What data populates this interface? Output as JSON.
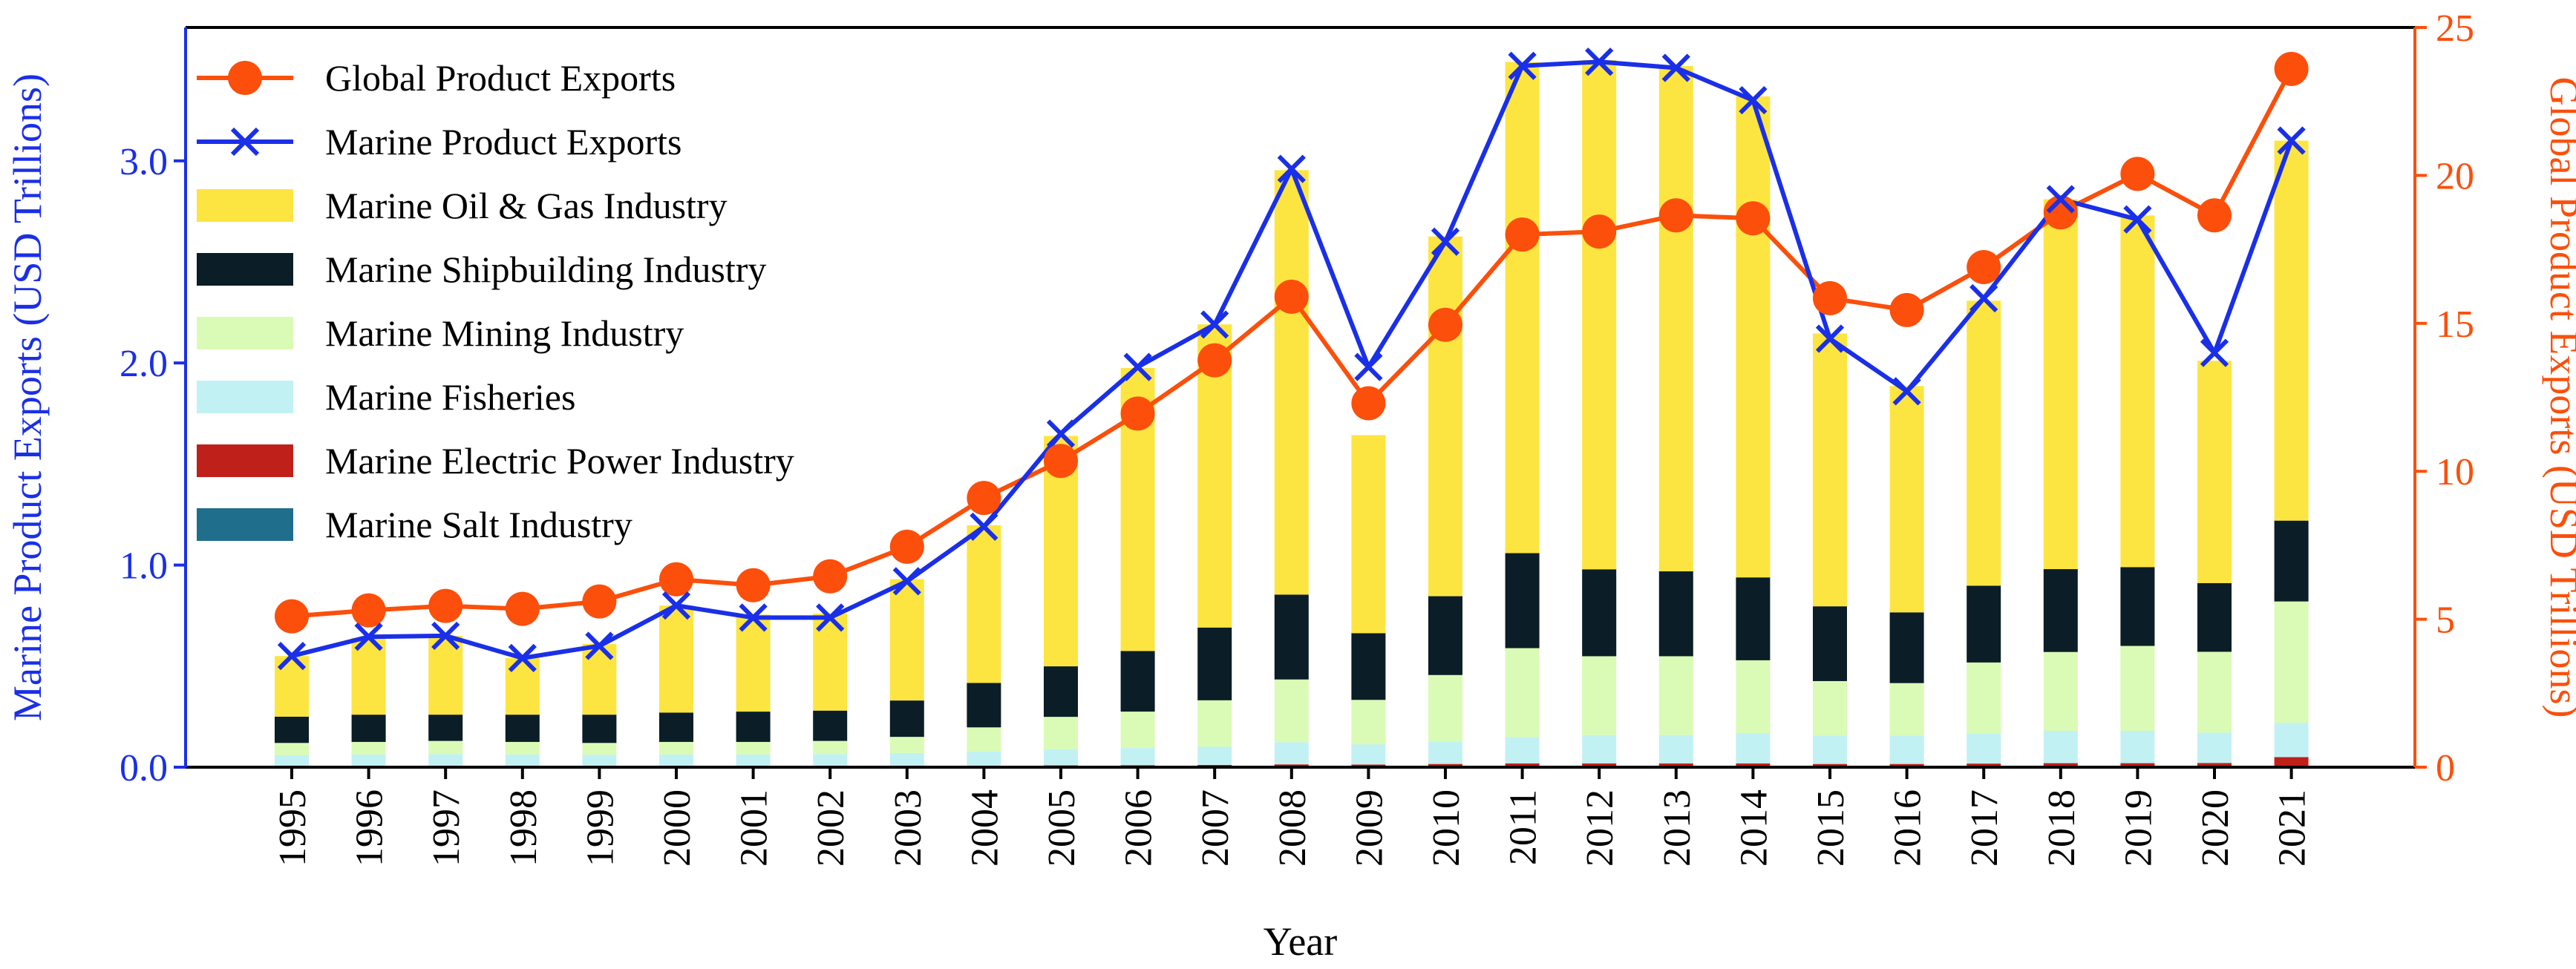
{
  "chart_data": {
    "type": "bar",
    "xlabel": "Year",
    "ylabel_left": "Marine Product Exports (USD Trillions)",
    "ylabel_right": "Global Product Exports (USD Trillions)",
    "ylim_left": [
      0,
      3.66
    ],
    "ylim_right": [
      0,
      25
    ],
    "yticks_left": [
      0.0,
      1.0,
      2.0,
      3.0
    ],
    "yticks_right": [
      0,
      5,
      10,
      15,
      20,
      25
    ],
    "legend_position": "upper-left",
    "grid": false,
    "categories": [
      "1995",
      "1996",
      "1997",
      "1998",
      "1999",
      "2000",
      "2001",
      "2002",
      "2003",
      "2004",
      "2005",
      "2006",
      "2007",
      "2008",
      "2009",
      "2010",
      "2011",
      "2012",
      "2013",
      "2014",
      "2015",
      "2016",
      "2017",
      "2018",
      "2019",
      "2020",
      "2021"
    ],
    "stacked_series": [
      {
        "name": "Marine Salt Industry",
        "color": "#1f6e8c",
        "values": [
          0.002,
          0.002,
          0.002,
          0.002,
          0.002,
          0.002,
          0.002,
          0.002,
          0.002,
          0.002,
          0.003,
          0.003,
          0.003,
          0.004,
          0.003,
          0.004,
          0.004,
          0.004,
          0.004,
          0.004,
          0.003,
          0.003,
          0.004,
          0.004,
          0.004,
          0.004,
          0.005
        ]
      },
      {
        "name": "Marine Electric Power Industry",
        "color": "#c0201a",
        "values": [
          0.003,
          0.003,
          0.003,
          0.003,
          0.003,
          0.003,
          0.003,
          0.003,
          0.004,
          0.005,
          0.006,
          0.007,
          0.008,
          0.01,
          0.01,
          0.012,
          0.015,
          0.015,
          0.015,
          0.015,
          0.013,
          0.013,
          0.014,
          0.016,
          0.016,
          0.017,
          0.045
        ]
      },
      {
        "name": "Marine Fisheries",
        "color": "#c2f1f4",
        "values": [
          0.055,
          0.058,
          0.06,
          0.058,
          0.057,
          0.058,
          0.058,
          0.06,
          0.064,
          0.07,
          0.08,
          0.085,
          0.09,
          0.11,
          0.1,
          0.11,
          0.13,
          0.14,
          0.14,
          0.15,
          0.14,
          0.14,
          0.15,
          0.16,
          0.16,
          0.15,
          0.17
        ]
      },
      {
        "name": "Marine Mining Industry",
        "color": "#dafbb5",
        "values": [
          0.06,
          0.062,
          0.065,
          0.062,
          0.058,
          0.062,
          0.062,
          0.065,
          0.08,
          0.12,
          0.16,
          0.18,
          0.23,
          0.31,
          0.22,
          0.33,
          0.44,
          0.39,
          0.39,
          0.36,
          0.27,
          0.26,
          0.35,
          0.39,
          0.42,
          0.4,
          0.6
        ]
      },
      {
        "name": "Marine Shipbuilding Industry",
        "color": "#0b1d26",
        "values": [
          0.13,
          0.135,
          0.13,
          0.135,
          0.14,
          0.145,
          0.15,
          0.15,
          0.18,
          0.22,
          0.25,
          0.3,
          0.36,
          0.42,
          0.33,
          0.39,
          0.47,
          0.43,
          0.42,
          0.41,
          0.37,
          0.35,
          0.38,
          0.41,
          0.39,
          0.34,
          0.4
        ]
      },
      {
        "name": "Marine Oil & Gas Industry",
        "color": "#fde541",
        "values": [
          0.3,
          0.38,
          0.39,
          0.28,
          0.35,
          0.53,
          0.48,
          0.48,
          0.6,
          0.78,
          1.14,
          1.4,
          1.5,
          2.1,
          0.98,
          1.78,
          2.43,
          2.52,
          2.5,
          2.38,
          1.35,
          1.12,
          1.41,
          1.83,
          1.74,
          1.1,
          1.88
        ]
      }
    ],
    "line_series": [
      {
        "name": "Global Product Exports",
        "axis": "right",
        "color": "#fb4f0b",
        "marker": "circle",
        "values": [
          5.1,
          5.3,
          5.45,
          5.35,
          5.6,
          6.35,
          6.15,
          6.45,
          7.45,
          9.1,
          10.35,
          11.95,
          13.75,
          15.9,
          12.3,
          14.95,
          18.0,
          18.1,
          18.65,
          18.55,
          15.85,
          15.45,
          16.9,
          18.75,
          20.05,
          18.65,
          23.6
        ]
      },
      {
        "name": "Marine Product Exports",
        "axis": "left",
        "color": "#1a2fe8",
        "marker": "x",
        "values": [
          0.55,
          0.645,
          0.65,
          0.54,
          0.6,
          0.8,
          0.74,
          0.74,
          0.92,
          1.19,
          1.65,
          1.98,
          2.19,
          2.96,
          1.98,
          2.6,
          3.47,
          3.49,
          3.46,
          3.3,
          2.12,
          1.86,
          2.32,
          2.81,
          2.71,
          2.05,
          3.1
        ]
      }
    ],
    "legend": [
      "Global Product Exports",
      "Marine Product Exports",
      "Marine Oil & Gas Industry",
      "Marine Shipbuilding Industry",
      "Marine Mining Industry",
      "Marine Fisheries",
      "Marine Electric Power Industry",
      "Marine Salt Industry"
    ],
    "axis_colors": {
      "left": "#1a2fe8",
      "right": "#fb4f0b",
      "bottom": "#000000"
    }
  }
}
